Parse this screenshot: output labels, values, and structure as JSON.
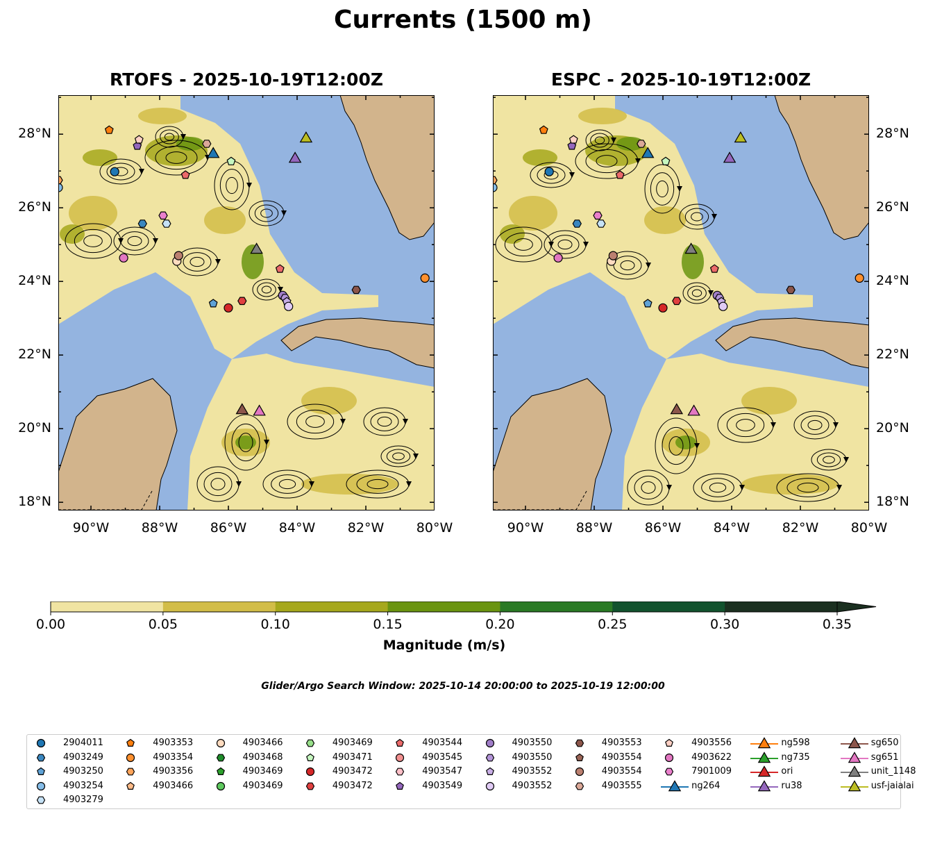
{
  "title": "Currents (1500 m)",
  "chart_data": {
    "type": "map-contour-streamlines",
    "panels": [
      {
        "title": "RTOFS - 2025-10-19T12:00Z"
      },
      {
        "title": "ESPC - 2025-10-19T12:00Z"
      }
    ],
    "lon_range": [
      -90.95,
      -80
    ],
    "lat_range": [
      17.77,
      29.06
    ],
    "lon_ticks": [
      {
        "v": -90,
        "label": "90°W"
      },
      {
        "v": -88,
        "label": "88°W"
      },
      {
        "v": -86,
        "label": "86°W"
      },
      {
        "v": -84,
        "label": "84°W"
      },
      {
        "v": -82,
        "label": "82°W"
      },
      {
        "v": -80,
        "label": "80°W"
      }
    ],
    "lat_ticks": [
      {
        "v": 18,
        "label": "18°N"
      },
      {
        "v": 20,
        "label": "20°N"
      },
      {
        "v": 22,
        "label": "22°N"
      },
      {
        "v": 24,
        "label": "24°N"
      },
      {
        "v": 26,
        "label": "26°N"
      },
      {
        "v": 28,
        "label": "28°N"
      }
    ],
    "colorbar": {
      "label": "Magnitude (m/s)",
      "levels": [
        0,
        0.05,
        0.1,
        0.15,
        0.2,
        0.25,
        0.3,
        0.35
      ],
      "tick_labels": [
        "0.00",
        "0.05",
        "0.10",
        "0.15",
        "0.20",
        "0.25",
        "0.30",
        "0.35"
      ],
      "colors": [
        "#f0e4a2",
        "#d2bd48",
        "#a6a81c",
        "#6a9410",
        "#2a7a24",
        "#12532e",
        "#1b3020"
      ],
      "extend": "max"
    },
    "colors": {
      "ocean": "#94b4e0",
      "land": "#d2b48c",
      "current": "#f0e4a2"
    },
    "markers": [
      [
        0,
        -89.31,
        26.98
      ],
      [
        5,
        -89.47,
        28.11
      ],
      [
        20,
        -88.65,
        27.68
      ],
      [
        29,
        -88.6,
        27.85
      ],
      [
        32,
        -86.44,
        27.49
      ],
      [
        14,
        -85.92,
        27.26
      ],
      [
        40,
        -83.74,
        27.91
      ],
      [
        36,
        -84.06,
        27.36
      ],
      [
        17,
        -87.25,
        26.89
      ],
      [
        28,
        -86.63,
        27.74
      ],
      [
        1,
        -88.5,
        25.57
      ],
      [
        31,
        -87.9,
        25.79
      ],
      [
        4,
        -87.8,
        25.57
      ],
      [
        30,
        -89.05,
        24.64
      ],
      [
        9,
        -87.5,
        24.55
      ],
      [
        27,
        -87.45,
        24.7
      ],
      [
        39,
        -85.18,
        24.89
      ],
      [
        17,
        -84.5,
        24.34
      ],
      [
        25,
        -82.28,
        23.77
      ],
      [
        6,
        -80.28,
        24.09
      ],
      [
        2,
        -86.44,
        23.4
      ],
      [
        15,
        -86.0,
        23.28
      ],
      [
        16,
        -85.6,
        23.47
      ],
      [
        21,
        -84.42,
        23.62
      ],
      [
        22,
        -84.35,
        23.55
      ],
      [
        23,
        -84.3,
        23.45
      ],
      [
        24,
        -84.25,
        23.32
      ],
      [
        37,
        -85.6,
        20.53
      ],
      [
        38,
        -85.1,
        20.49
      ],
      [
        3,
        -90.95,
        26.55
      ],
      [
        7,
        -90.95,
        26.75
      ]
    ],
    "legend": [
      {
        "label": "2904011",
        "shape": "circle",
        "color": "#1f77b4"
      },
      {
        "label": "4903249",
        "shape": "hex",
        "color": "#3a87c0"
      },
      {
        "label": "4903250",
        "shape": "pent",
        "color": "#5fa2d6"
      },
      {
        "label": "4903254",
        "shape": "circle",
        "color": "#86bde8"
      },
      {
        "label": "4903279",
        "shape": "hex",
        "color": "#c6e2f6"
      },
      {
        "label": "4903353",
        "shape": "pent",
        "color": "#ff7f0e"
      },
      {
        "label": "4903354",
        "shape": "circle",
        "color": "#ff902e"
      },
      {
        "label": "4903356",
        "shape": "hex",
        "color": "#ffa45a"
      },
      {
        "label": "4903466",
        "shape": "pent",
        "color": "#ffbb88"
      },
      {
        "label": "4903466",
        "shape": "circle",
        "color": "#ffdcc0"
      },
      {
        "label": "4903468",
        "shape": "hex",
        "color": "#1e8c2a"
      },
      {
        "label": "4903469",
        "shape": "pent",
        "color": "#2ca02c"
      },
      {
        "label": "4903469",
        "shape": "circle",
        "color": "#5ec95e"
      },
      {
        "label": "4903469",
        "shape": "hex",
        "color": "#98df8a"
      },
      {
        "label": "4903471",
        "shape": "pent",
        "color": "#c6f7c0"
      },
      {
        "label": "4903472",
        "shape": "circle",
        "color": "#d62728"
      },
      {
        "label": "4903472",
        "shape": "hex",
        "color": "#e04040"
      },
      {
        "label": "4903544",
        "shape": "pent",
        "color": "#eb6a6a"
      },
      {
        "label": "4903545",
        "shape": "circle",
        "color": "#f29090"
      },
      {
        "label": "4903547",
        "shape": "hex",
        "color": "#ffc0c8"
      },
      {
        "label": "4903549",
        "shape": "pent",
        "color": "#9467bd"
      },
      {
        "label": "4903550",
        "shape": "circle",
        "color": "#a07dc8"
      },
      {
        "label": "4903550",
        "shape": "hex",
        "color": "#b394d8"
      },
      {
        "label": "4903552",
        "shape": "pent",
        "color": "#c8aee6"
      },
      {
        "label": "4903552",
        "shape": "circle",
        "color": "#e0cbf5"
      },
      {
        "label": "4903553",
        "shape": "hex",
        "color": "#8c564b"
      },
      {
        "label": "4903554",
        "shape": "pent",
        "color": "#9a6456"
      },
      {
        "label": "4903554",
        "shape": "circle",
        "color": "#bb8070"
      },
      {
        "label": "4903555",
        "shape": "hex",
        "color": "#dba898"
      },
      {
        "label": "4903556",
        "shape": "pent",
        "color": "#ffd0c4"
      },
      {
        "label": "4903622",
        "shape": "circle",
        "color": "#e377c2"
      },
      {
        "label": "7901009",
        "shape": "hex",
        "color": "#ea80cc"
      },
      {
        "label": "ng264",
        "shape": "tri",
        "color": "#1f77b4"
      },
      {
        "label": "ng598",
        "shape": "tri",
        "color": "#ff7f0e"
      },
      {
        "label": "ng735",
        "shape": "tri",
        "color": "#2ca02c"
      },
      {
        "label": "ori",
        "shape": "tri",
        "color": "#d62728"
      },
      {
        "label": "ru38",
        "shape": "tri",
        "color": "#9467bd"
      },
      {
        "label": "sg650",
        "shape": "tri",
        "color": "#8c564b"
      },
      {
        "label": "sg651",
        "shape": "tri",
        "color": "#e377c2"
      },
      {
        "label": "unit_1148",
        "shape": "tri",
        "color": "#7f7f7f"
      },
      {
        "label": "usf-jaialai",
        "shape": "tri",
        "color": "#bcbd22"
      }
    ]
  },
  "search_window": "Glider/Argo Search Window: 2025-10-14 20:00:00 to 2025-10-19 12:00:00"
}
